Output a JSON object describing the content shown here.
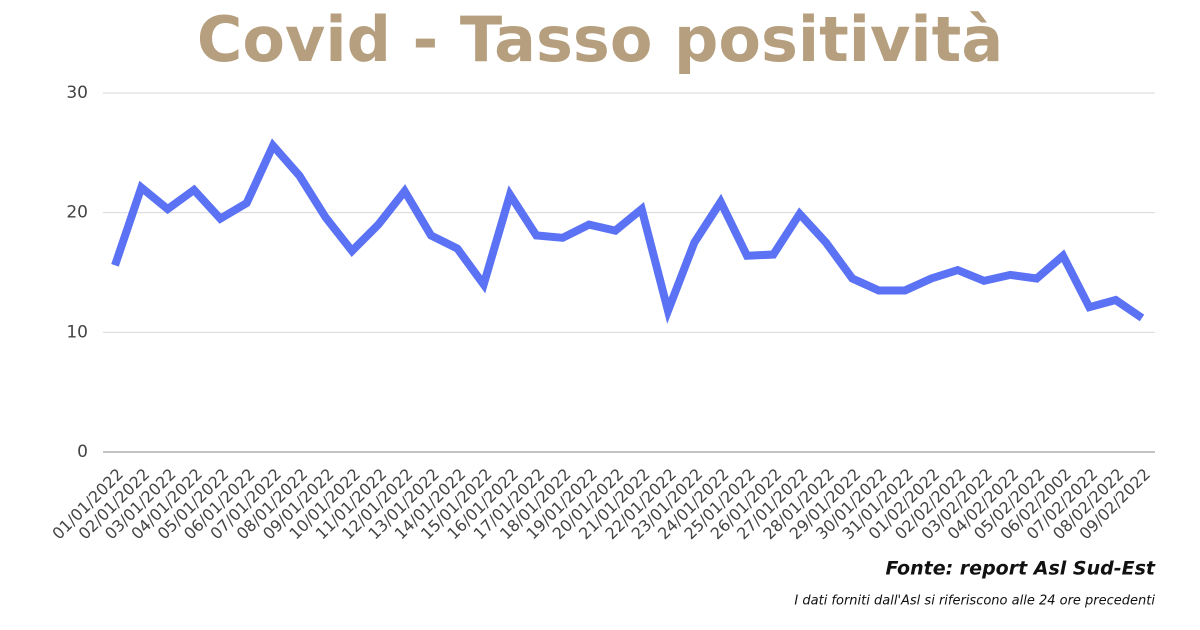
{
  "chart_data": {
    "type": "line",
    "title": "Covid - Tasso positività",
    "categories": [
      "01/01/2022",
      "02/01/2022",
      "03/01/2022",
      "04/01/2022",
      "05/01/2022",
      "06/01/2022",
      "07/01/2022",
      "08/01/2022",
      "09/01/2022",
      "10/01/2022",
      "11/01/2022",
      "12/01/2022",
      "13/01/2022",
      "14/01/2022",
      "15/01/2022",
      "16/01/2022",
      "17/01/2022",
      "18/01/2022",
      "19/01/2022",
      "20/01/2022",
      "21/01/2022",
      "22/01/2022",
      "23/01/2022",
      "24/01/2022",
      "25/01/2022",
      "26/01/2022",
      "27/01/2022",
      "28/01/2022",
      "29/01/2022",
      "30/01/2022",
      "31/01/2022",
      "01/02/2022",
      "02/02/2022",
      "03/02/2022",
      "04/02/2022",
      "05/02/2022",
      "06/02/2002",
      "07/02/2022",
      "08/02/2022",
      "09/02/2022"
    ],
    "series": [
      {
        "name": "Tasso positività",
        "color": "#5b72f5",
        "values": [
          15.6,
          22.1,
          20.3,
          21.9,
          19.5,
          20.8,
          25.6,
          23.1,
          19.6,
          16.8,
          19.0,
          21.8,
          18.1,
          17.0,
          14.0,
          21.5,
          18.1,
          17.9,
          19.0,
          18.5,
          20.3,
          11.8,
          17.5,
          20.9,
          16.4,
          16.5,
          19.9,
          17.5,
          14.5,
          13.5,
          13.5,
          14.5,
          15.2,
          14.3,
          14.8,
          14.5,
          16.4,
          12.1,
          12.7,
          11.2
        ]
      }
    ],
    "ylim": [
      0,
      30
    ],
    "yticks": [
      0,
      10,
      20,
      30
    ],
    "grid": true,
    "source": "Fonte: report Asl Sud-Est",
    "note": "I dati forniti dall'Asl si riferiscono alle 24 ore precedenti"
  }
}
